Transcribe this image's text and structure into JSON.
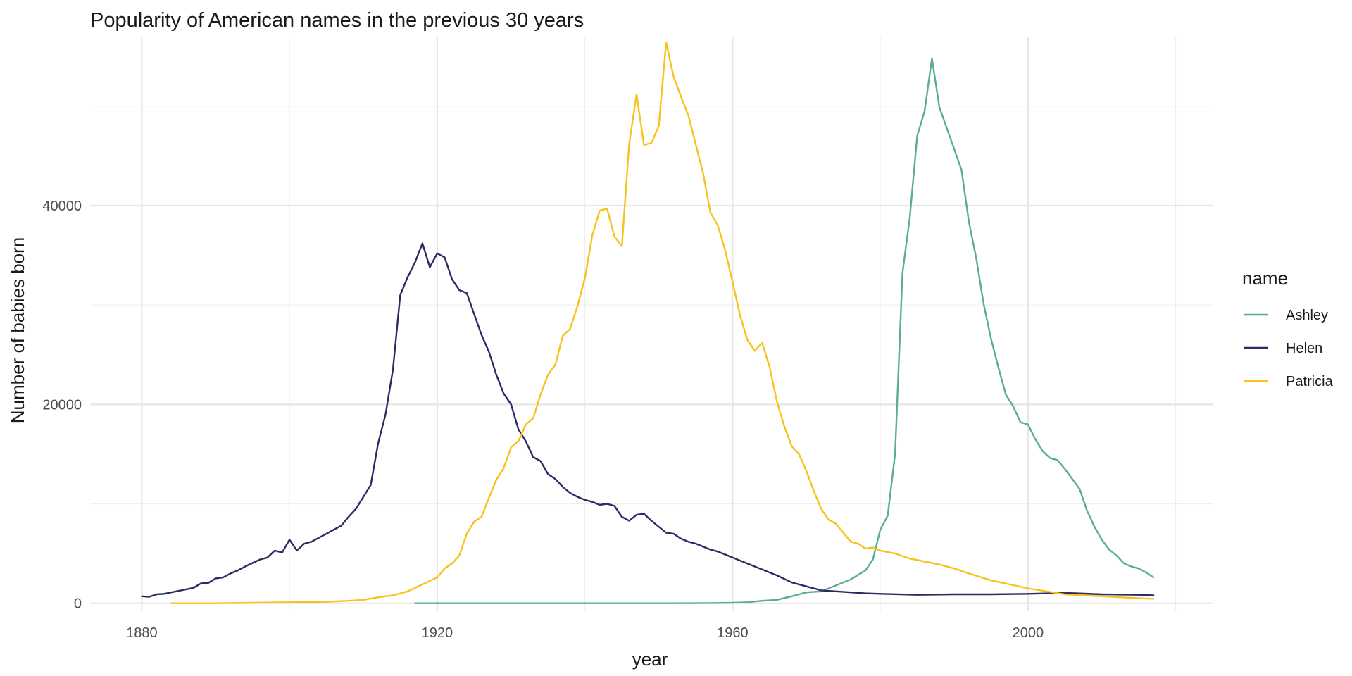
{
  "chart_data": {
    "type": "line",
    "title": "Popularity of American names in the previous 30 years",
    "xlabel": "year",
    "ylabel": "Number of babies born",
    "xlim": [
      1873,
      2025
    ],
    "ylim": [
      -800,
      57000
    ],
    "x_ticks": [
      1880,
      1920,
      1960,
      2000
    ],
    "y_ticks": [
      0,
      20000,
      40000
    ],
    "x_tick_labels": [
      "1880",
      "1920",
      "1960",
      "2000"
    ],
    "y_tick_labels": [
      "0",
      "20000",
      "40000"
    ],
    "grid": true,
    "legend": {
      "title": "name",
      "position": "right"
    },
    "series": [
      {
        "name": "Ashley",
        "color": "#5aae8f",
        "x": [
          1917,
          1920,
          1925,
          1930,
          1935,
          1940,
          1945,
          1950,
          1955,
          1960,
          1962,
          1964,
          1966,
          1968,
          1970,
          1972,
          1974,
          1976,
          1978,
          1979,
          1980,
          1981,
          1982,
          1983,
          1984,
          1985,
          1986,
          1987,
          1988,
          1989,
          1990,
          1991,
          1992,
          1993,
          1994,
          1995,
          1996,
          1997,
          1998,
          1999,
          2000,
          2001,
          2002,
          2003,
          2004,
          2005,
          2006,
          2007,
          2008,
          2009,
          2010,
          2011,
          2012,
          2013,
          2014,
          2015,
          2016,
          2017
        ],
        "y": [
          0,
          0,
          0,
          0,
          0,
          0,
          0,
          0,
          10,
          50,
          100,
          250,
          350,
          700,
          1100,
          1200,
          1800,
          2400,
          3300,
          4400,
          7400,
          8800,
          15000,
          33200,
          38800,
          47000,
          49500,
          54800,
          49900,
          47800,
          45700,
          43600,
          38400,
          34700,
          30100,
          26600,
          23700,
          21000,
          19800,
          18200,
          18000,
          16500,
          15300,
          14600,
          14400,
          13500,
          12500,
          11500,
          9300,
          7700,
          6400,
          5400,
          4800,
          4000,
          3700,
          3500,
          3100,
          2600
        ]
      },
      {
        "name": "Helen",
        "color": "#2e2a63",
        "x": [
          1880,
          1881,
          1882,
          1883,
          1884,
          1885,
          1886,
          1887,
          1888,
          1889,
          1890,
          1891,
          1892,
          1893,
          1894,
          1895,
          1896,
          1897,
          1898,
          1899,
          1900,
          1901,
          1902,
          1903,
          1904,
          1905,
          1906,
          1907,
          1908,
          1909,
          1910,
          1911,
          1912,
          1913,
          1914,
          1915,
          1916,
          1917,
          1918,
          1919,
          1920,
          1921,
          1922,
          1923,
          1924,
          1925,
          1926,
          1927,
          1928,
          1929,
          1930,
          1931,
          1932,
          1933,
          1934,
          1935,
          1936,
          1937,
          1938,
          1939,
          1940,
          1941,
          1942,
          1943,
          1944,
          1945,
          1946,
          1947,
          1948,
          1949,
          1950,
          1951,
          1952,
          1953,
          1954,
          1955,
          1956,
          1957,
          1958,
          1959,
          1960,
          1962,
          1964,
          1966,
          1968,
          1970,
          1972,
          1974,
          1976,
          1978,
          1980,
          1985,
          1990,
          1995,
          2000,
          2005,
          2010,
          2015,
          2017
        ],
        "y": [
          700,
          650,
          900,
          950,
          1100,
          1250,
          1400,
          1550,
          2000,
          2050,
          2500,
          2600,
          3000,
          3300,
          3700,
          4050,
          4400,
          4600,
          5300,
          5100,
          6400,
          5300,
          6000,
          6200,
          6600,
          7000,
          7400,
          7800,
          8700,
          9500,
          10700,
          11900,
          16100,
          19000,
          23500,
          31000,
          32800,
          34300,
          36200,
          33800,
          35200,
          34800,
          32600,
          31500,
          31200,
          29100,
          27000,
          25300,
          23000,
          21100,
          20000,
          17500,
          16300,
          14700,
          14300,
          13000,
          12500,
          11700,
          11100,
          10700,
          10400,
          10200,
          9900,
          10000,
          9800,
          8700,
          8300,
          8900,
          9000,
          8300,
          7700,
          7100,
          7000,
          6500,
          6200,
          6000,
          5700,
          5400,
          5200,
          4900,
          4600,
          4000,
          3400,
          2800,
          2100,
          1700,
          1300,
          1200,
          1100,
          1000,
          950,
          850,
          900,
          900,
          950,
          1050,
          900,
          850,
          800
        ]
      },
      {
        "name": "Patricia",
        "color": "#f8c21c",
        "x": [
          1884,
          1890,
          1895,
          1900,
          1905,
          1908,
          1910,
          1912,
          1914,
          1916,
          1918,
          1920,
          1921,
          1922,
          1923,
          1924,
          1925,
          1926,
          1927,
          1928,
          1929,
          1930,
          1931,
          1932,
          1933,
          1934,
          1935,
          1936,
          1937,
          1938,
          1939,
          1940,
          1941,
          1942,
          1943,
          1944,
          1945,
          1946,
          1947,
          1948,
          1949,
          1950,
          1951,
          1952,
          1953,
          1954,
          1955,
          1956,
          1957,
          1958,
          1959,
          1960,
          1961,
          1962,
          1963,
          1964,
          1965,
          1966,
          1967,
          1968,
          1969,
          1970,
          1971,
          1972,
          1973,
          1974,
          1975,
          1976,
          1977,
          1978,
          1979,
          1980,
          1982,
          1984,
          1986,
          1988,
          1990,
          1992,
          1995,
          2000,
          2005,
          2010,
          2015,
          2017
        ],
        "y": [
          0,
          0,
          50,
          100,
          150,
          250,
          350,
          600,
          800,
          1200,
          1900,
          2600,
          3500,
          4000,
          4800,
          7000,
          8200,
          8700,
          10600,
          12400,
          13600,
          15700,
          16300,
          18000,
          18600,
          21000,
          23000,
          24000,
          26900,
          27600,
          29900,
          32700,
          37000,
          39500,
          39700,
          36900,
          35900,
          46200,
          51200,
          46100,
          46300,
          48000,
          56400,
          53000,
          51000,
          49100,
          46200,
          43300,
          39300,
          38000,
          35500,
          32300,
          29000,
          26500,
          25400,
          26200,
          23800,
          20300,
          17800,
          15800,
          15000,
          13300,
          11300,
          9500,
          8400,
          8000,
          7100,
          6200,
          6000,
          5500,
          5600,
          5300,
          5000,
          4500,
          4200,
          3900,
          3500,
          3000,
          2300,
          1500,
          900,
          700,
          500,
          450
        ]
      }
    ]
  }
}
